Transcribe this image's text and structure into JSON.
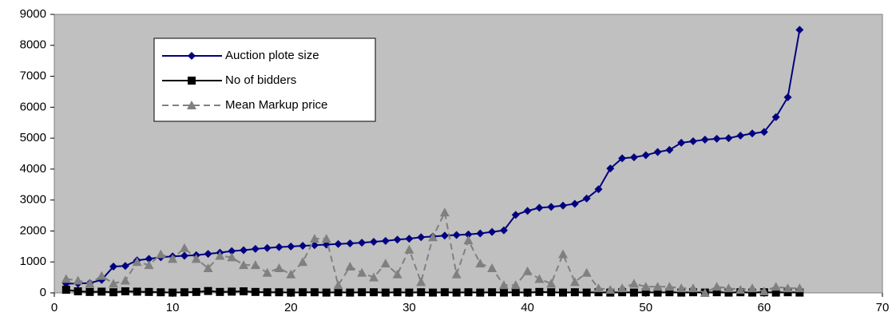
{
  "chart_data": {
    "type": "line",
    "x": [
      1,
      2,
      3,
      4,
      5,
      6,
      7,
      8,
      9,
      10,
      11,
      12,
      13,
      14,
      15,
      16,
      17,
      18,
      19,
      20,
      21,
      22,
      23,
      24,
      25,
      26,
      27,
      28,
      29,
      30,
      31,
      32,
      33,
      34,
      35,
      36,
      37,
      38,
      39,
      40,
      41,
      42,
      43,
      44,
      45,
      46,
      47,
      48,
      49,
      50,
      51,
      52,
      53,
      54,
      55,
      56,
      57,
      58,
      59,
      60,
      61,
      62,
      63
    ],
    "series": [
      {
        "name": "Auction plote size",
        "color": "#000080",
        "marker": "diamond",
        "dash": false,
        "values": [
          300,
          300,
          320,
          420,
          850,
          870,
          1050,
          1100,
          1150,
          1180,
          1200,
          1220,
          1260,
          1300,
          1350,
          1380,
          1420,
          1450,
          1480,
          1500,
          1520,
          1540,
          1560,
          1580,
          1600,
          1620,
          1650,
          1680,
          1720,
          1750,
          1800,
          1820,
          1850,
          1870,
          1890,
          1920,
          1970,
          2020,
          2520,
          2650,
          2750,
          2780,
          2820,
          2880,
          3050,
          3350,
          4020,
          4350,
          4380,
          4450,
          4550,
          4620,
          4850,
          4900,
          4950,
          4980,
          5000,
          5080,
          5150,
          5200,
          5680,
          6320,
          8500
        ]
      },
      {
        "name": "No of bidders",
        "color": "#000000",
        "marker": "square",
        "dash": false,
        "values": [
          100,
          50,
          30,
          40,
          20,
          50,
          40,
          30,
          20,
          10,
          20,
          30,
          60,
          30,
          40,
          50,
          30,
          20,
          20,
          10,
          20,
          20,
          10,
          20,
          10,
          20,
          20,
          10,
          20,
          10,
          20,
          10,
          20,
          10,
          20,
          10,
          20,
          10,
          20,
          10,
          30,
          20,
          10,
          20,
          10,
          20,
          10,
          20,
          10,
          20,
          10,
          20,
          10,
          20,
          10,
          20,
          10,
          20,
          10,
          20,
          10,
          20,
          10
        ]
      },
      {
        "name": "Mean Markup price",
        "color": "#808080",
        "marker": "triangle",
        "dash": true,
        "values": [
          450,
          400,
          300,
          550,
          300,
          400,
          1000,
          900,
          1250,
          1100,
          1450,
          1100,
          800,
          1200,
          1150,
          900,
          900,
          650,
          800,
          600,
          1000,
          1750,
          1750,
          250,
          850,
          650,
          500,
          950,
          600,
          1400,
          350,
          1800,
          2600,
          600,
          1700,
          950,
          800,
          250,
          250,
          700,
          450,
          300,
          1250,
          350,
          650,
          150,
          100,
          150,
          300,
          200,
          200,
          200,
          150,
          150,
          0,
          200,
          150,
          100,
          150,
          50,
          200,
          150,
          150
        ]
      }
    ],
    "xlim": [
      0,
      70
    ],
    "xticks": [
      0,
      10,
      20,
      30,
      40,
      50,
      60,
      70
    ],
    "ylim": [
      0,
      9000
    ],
    "yticks": [
      0,
      1000,
      2000,
      3000,
      4000,
      5000,
      6000,
      7000,
      8000,
      9000
    ],
    "grid": false,
    "legend": "upper left",
    "plot_background": "#c0c0c0"
  }
}
